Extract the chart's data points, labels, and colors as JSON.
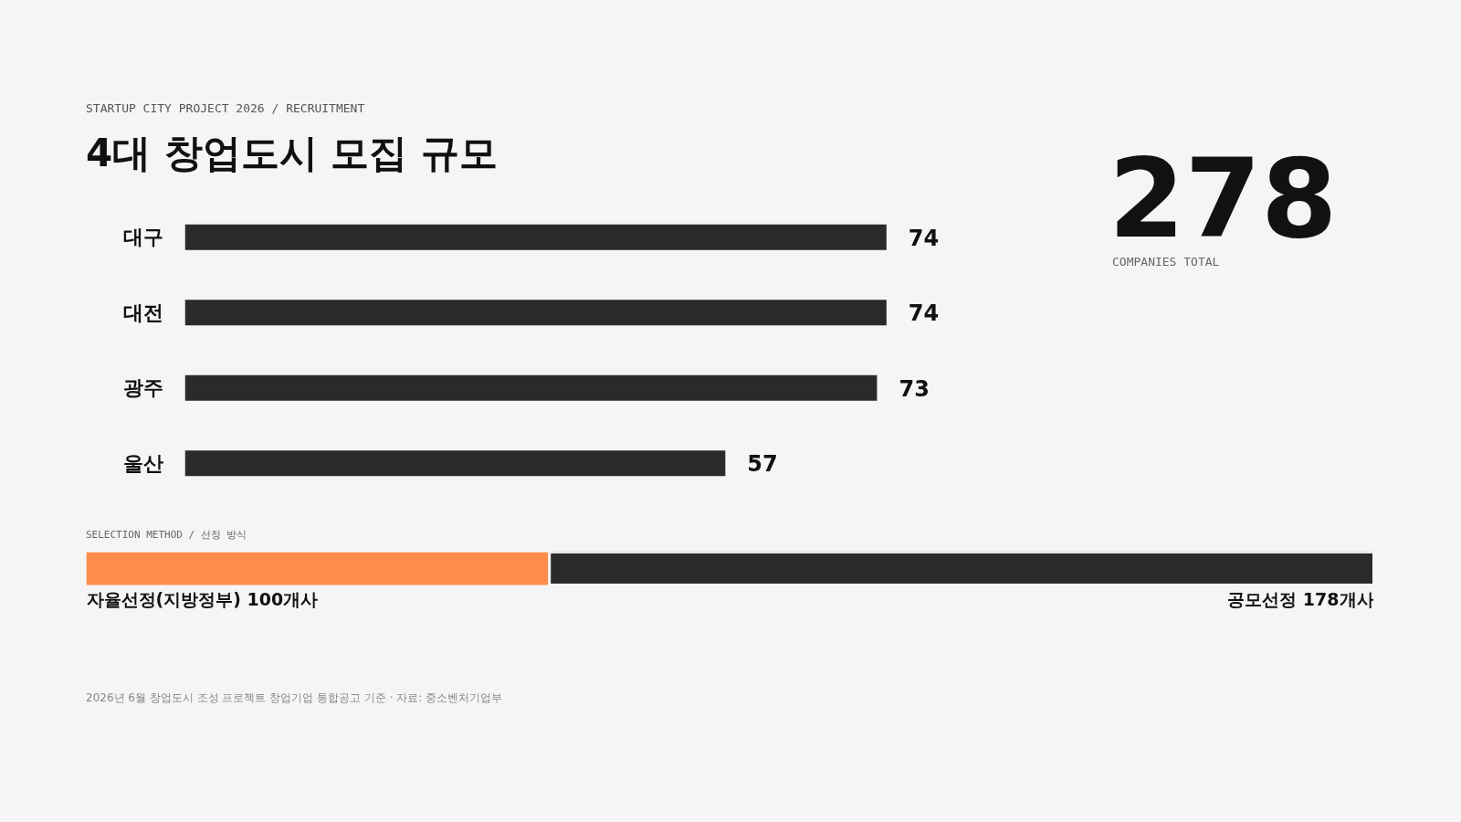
{
  "chart_data": [
    {
      "type": "bar",
      "orientation": "horizontal",
      "subtitle": "STARTUP CITY PROJECT 2026 / RECRUITMENT",
      "title": "4대 창업도시 모집 규모",
      "categories": [
        "대구",
        "대전",
        "광주",
        "울산"
      ],
      "values": [
        74,
        74,
        73,
        57
      ],
      "color": "#2a2a2a",
      "data_labels": true
    },
    {
      "type": "other",
      "title": "278",
      "subtitle": "COMPANIES TOTAL"
    },
    {
      "type": "bar",
      "orientation": "horizontal",
      "stacked": true,
      "subtitle": "SELECTION METHOD / 선정 방식",
      "categories": [
        null
      ],
      "series": [
        {
          "color": "#ff8c4a",
          "values": [
            100
          ],
          "value_labels": [
            "자율선정(지방정부) 100개사"
          ]
        },
        {
          "color": "#2a2a2a",
          "values": [
            178
          ],
          "value_labels": [
            "공모선정 178개사"
          ]
        }
      ],
      "annotations": [
        "2026년 6월 창업도시 조성 프로젝트 창업기업 통합공고 기준 · 자료: 중소벤처기업부"
      ]
    }
  ]
}
